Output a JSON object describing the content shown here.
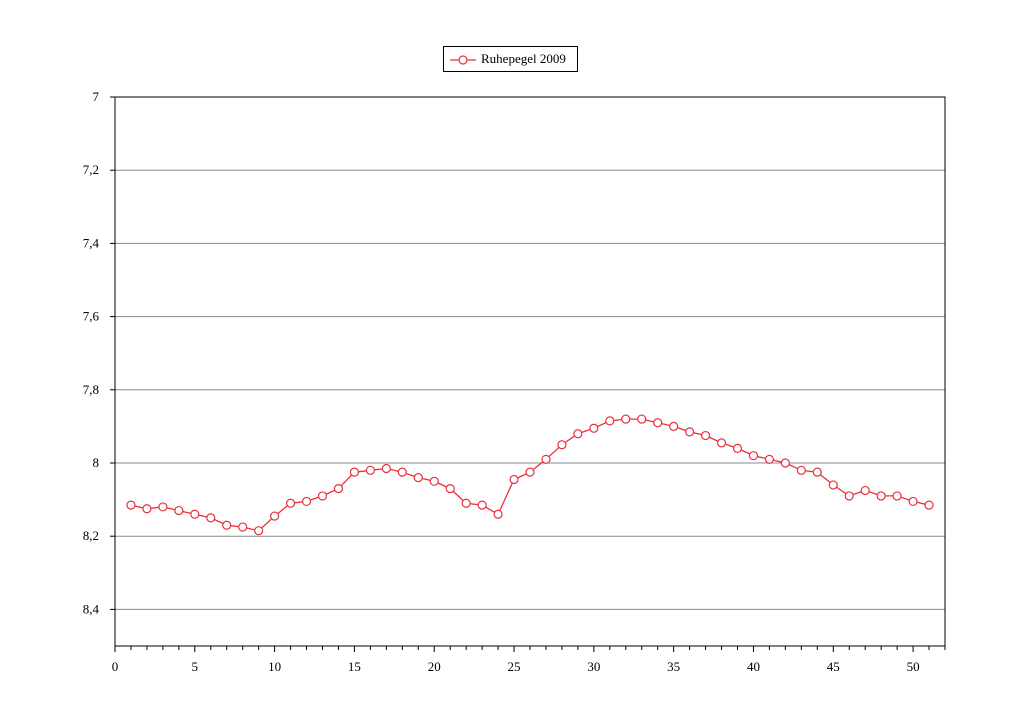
{
  "chart_data": {
    "type": "line",
    "title": "",
    "xlabel": "",
    "ylabel": "",
    "xlim": [
      0,
      52
    ],
    "ylim": [
      7,
      8.5
    ],
    "y_inverted": true,
    "x_ticks": [
      0,
      5,
      10,
      15,
      20,
      25,
      30,
      35,
      40,
      45,
      50
    ],
    "x_tick_labels": [
      "0",
      "5",
      "10",
      "15",
      "20",
      "25",
      "30",
      "35",
      "40",
      "45",
      "50"
    ],
    "y_ticks": [
      7,
      7.2,
      7.4,
      7.6,
      7.8,
      8,
      8.2,
      8.4
    ],
    "y_tick_labels": [
      "7",
      "7,2",
      "7,4",
      "7,6",
      "7,8",
      "8",
      "8,2",
      "8,4"
    ],
    "grid": "horizontal",
    "legend_position": "top-center",
    "series": [
      {
        "name": "Ruhepegel 2009",
        "color": "#e8303a",
        "marker": "circle-open",
        "x": [
          1,
          2,
          3,
          4,
          5,
          6,
          7,
          8,
          9,
          10,
          11,
          12,
          13,
          14,
          15,
          16,
          17,
          18,
          19,
          20,
          21,
          22,
          23,
          24,
          25,
          26,
          27,
          28,
          29,
          30,
          31,
          32,
          33,
          34,
          35,
          36,
          37,
          38,
          39,
          40,
          41,
          42,
          43,
          44,
          45,
          46,
          47,
          48,
          49,
          50,
          51
        ],
        "y": [
          8.115,
          8.125,
          8.12,
          8.13,
          8.14,
          8.15,
          8.17,
          8.175,
          8.185,
          8.145,
          8.11,
          8.105,
          8.09,
          8.07,
          8.025,
          8.02,
          8.015,
          8.025,
          8.04,
          8.05,
          8.07,
          8.11,
          8.115,
          8.14,
          8.045,
          8.025,
          7.99,
          7.95,
          7.92,
          7.905,
          7.885,
          7.88,
          7.88,
          7.89,
          7.9,
          7.915,
          7.925,
          7.945,
          7.96,
          7.98,
          7.99,
          8.0,
          8.02,
          8.025,
          8.06,
          8.09,
          8.075,
          8.09,
          8.09,
          8.105,
          8.115
        ]
      }
    ]
  }
}
